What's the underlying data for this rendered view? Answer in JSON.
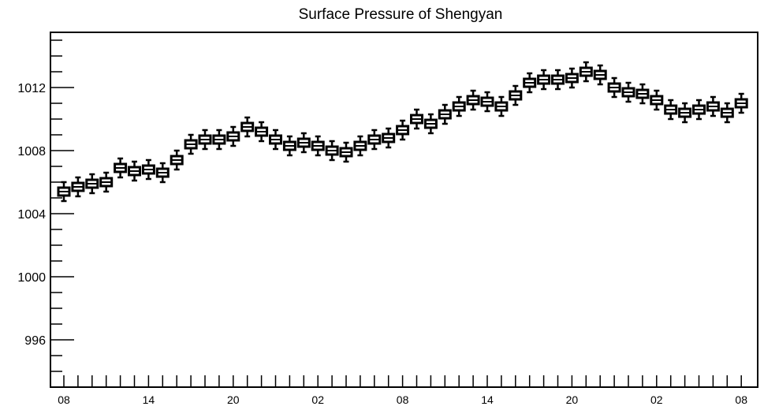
{
  "chart_data": {
    "type": "boxplot",
    "title": "Surface Pressure of Shengyan",
    "xlabel": "",
    "ylabel": "",
    "ylim": [
      993,
      1015.5
    ],
    "yticks": [
      996,
      1000,
      1004,
      1008,
      1012
    ],
    "xtick_labels": [
      "08",
      "14",
      "20",
      "02",
      "08",
      "14",
      "20",
      "02",
      "08"
    ],
    "grid": false,
    "series": [
      {
        "medians": [
          1005.4,
          1005.7,
          1005.9,
          1006.0,
          1006.9,
          1006.7,
          1006.8,
          1006.6,
          1007.4,
          1008.4,
          1008.7,
          1008.7,
          1008.9,
          1009.5,
          1009.2,
          1008.7,
          1008.3,
          1008.5,
          1008.3,
          1008.0,
          1007.9,
          1008.3,
          1008.7,
          1008.8,
          1009.3,
          1010.0,
          1009.7,
          1010.3,
          1010.8,
          1011.2,
          1011.1,
          1010.8,
          1011.5,
          1012.3,
          1012.5,
          1012.5,
          1012.6,
          1013.0,
          1012.8,
          1012.0,
          1011.7,
          1011.6,
          1011.2,
          1010.6,
          1010.4,
          1010.6,
          1010.8,
          1010.4,
          1011.0
        ]
      }
    ]
  }
}
